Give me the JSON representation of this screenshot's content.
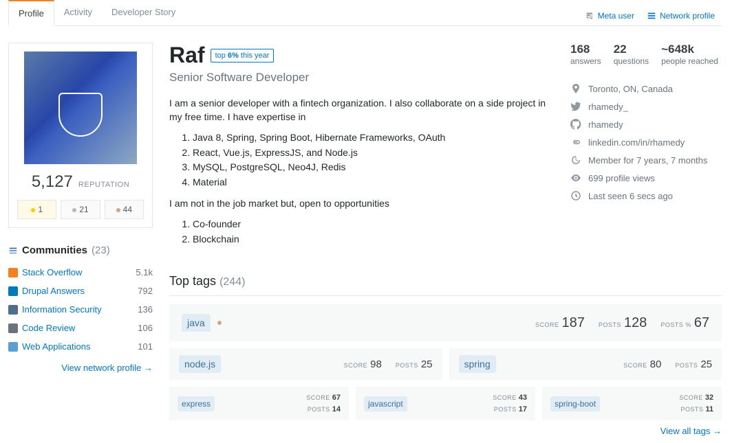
{
  "tabs": {
    "profile": "Profile",
    "activity": "Activity",
    "story": "Developer Story"
  },
  "meta_links": {
    "meta": "Meta user",
    "network": "Network profile"
  },
  "profile": {
    "rep": "5,127",
    "rep_label": "REPUTATION",
    "badges": {
      "gold": "1",
      "silver": "21",
      "bronze": "44"
    }
  },
  "communities": {
    "title": "Communities",
    "count": "(23)",
    "items": [
      {
        "name": "Stack Overflow",
        "val": "5.1k"
      },
      {
        "name": "Drupal Answers",
        "val": "792"
      },
      {
        "name": "Information Security",
        "val": "136"
      },
      {
        "name": "Code Review",
        "val": "106"
      },
      {
        "name": "Web Applications",
        "val": "101"
      }
    ],
    "view": "View network profile →"
  },
  "user": {
    "name": "Raf",
    "top_badge_prefix": "top ",
    "top_badge_pct": "6%",
    "top_badge_suffix": " this year",
    "title": "Senior Software Developer",
    "bio1": "I am a senior developer with a fintech organization. I also collaborate on a side project in my free time. I have expertise in",
    "skills": [
      "Java 8, Spring, Spring Boot, Hibernate Frameworks, OAuth",
      "React, Vue.js, ExpressJS, and Node.js",
      "MySQL, PostgreSQL, Neo4J, Redis",
      "Material"
    ],
    "bio2": "I am not in the job market but, open to opportunities",
    "interests": [
      "Co-founder",
      "Blockchain"
    ]
  },
  "stats": [
    {
      "num": "168",
      "label": "answers"
    },
    {
      "num": "22",
      "label": "questions"
    },
    {
      "num": "~648k",
      "label": "people reached"
    }
  ],
  "meta": {
    "location": "Toronto, ON, Canada",
    "twitter": "rhamedy_",
    "github": "rhamedy",
    "link": "linkedin.com/in/rhamedy",
    "member": "Member for 7 years, 7 months",
    "views": "699 profile views",
    "seen": "Last seen 6 secs ago"
  },
  "toptags": {
    "title": "Top tags",
    "count": "(244)",
    "big": {
      "name": "java",
      "score": "187",
      "posts": "128",
      "pct": "67"
    },
    "med": [
      {
        "name": "node.js",
        "score": "98",
        "posts": "25"
      },
      {
        "name": "spring",
        "score": "80",
        "posts": "25"
      }
    ],
    "sm": [
      {
        "name": "express",
        "score": "67",
        "posts": "14"
      },
      {
        "name": "javascript",
        "score": "43",
        "posts": "17"
      },
      {
        "name": "spring-boot",
        "score": "32",
        "posts": "11"
      }
    ],
    "view": "View all tags →",
    "labels": {
      "score": "SCORE",
      "posts": "POSTS",
      "postspct": "POSTS %"
    }
  }
}
